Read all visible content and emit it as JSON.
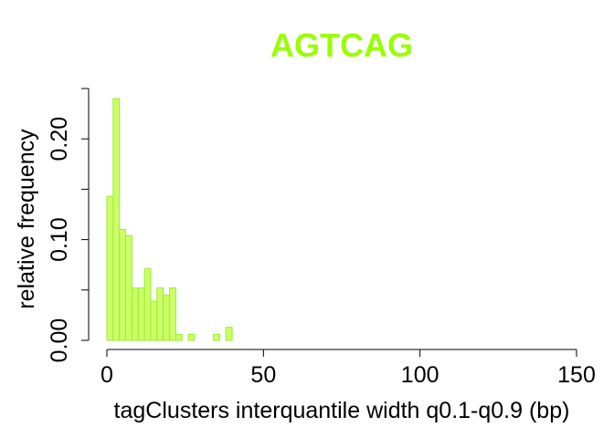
{
  "chart_data": {
    "type": "bar",
    "title": "AGTCAG",
    "xlabel": "tagClusters interquantile width q0.1-q0.9 (bp)",
    "ylabel": "relative frequency",
    "xlim": [
      0,
      150
    ],
    "ylim": [
      0,
      0.25
    ],
    "x_ticks": [
      0,
      50,
      100,
      150
    ],
    "x_tick_labels": [
      "0",
      "50",
      "100",
      "150"
    ],
    "y_ticks": [
      0,
      0.05,
      0.1,
      0.15,
      0.2,
      0.25
    ],
    "y_tick_labels": [
      "0.00",
      "",
      "0.10",
      "",
      "0.20",
      ""
    ],
    "bin_width": 2,
    "bins": [
      {
        "x0": 0,
        "x1": 2,
        "value": 0.143
      },
      {
        "x0": 2,
        "x1": 4,
        "value": 0.24
      },
      {
        "x0": 4,
        "x1": 6,
        "value": 0.11
      },
      {
        "x0": 6,
        "x1": 8,
        "value": 0.104
      },
      {
        "x0": 8,
        "x1": 10,
        "value": 0.052
      },
      {
        "x0": 10,
        "x1": 12,
        "value": 0.052
      },
      {
        "x0": 12,
        "x1": 14,
        "value": 0.071
      },
      {
        "x0": 14,
        "x1": 16,
        "value": 0.039
      },
      {
        "x0": 16,
        "x1": 18,
        "value": 0.052
      },
      {
        "x0": 18,
        "x1": 20,
        "value": 0.045
      },
      {
        "x0": 20,
        "x1": 22,
        "value": 0.052
      },
      {
        "x0": 22,
        "x1": 24,
        "value": 0.006
      },
      {
        "x0": 24,
        "x1": 26,
        "value": 0.0
      },
      {
        "x0": 26,
        "x1": 28,
        "value": 0.006
      },
      {
        "x0": 28,
        "x1": 30,
        "value": 0.0
      },
      {
        "x0": 30,
        "x1": 32,
        "value": 0.0
      },
      {
        "x0": 32,
        "x1": 34,
        "value": 0.0
      },
      {
        "x0": 34,
        "x1": 36,
        "value": 0.006
      },
      {
        "x0": 36,
        "x1": 38,
        "value": 0.0
      },
      {
        "x0": 38,
        "x1": 40,
        "value": 0.013
      }
    ],
    "grid": false,
    "colors": {
      "title": "#99ff00",
      "bar_fill": "#ccff66",
      "bar_stroke": "#99ee33"
    }
  }
}
